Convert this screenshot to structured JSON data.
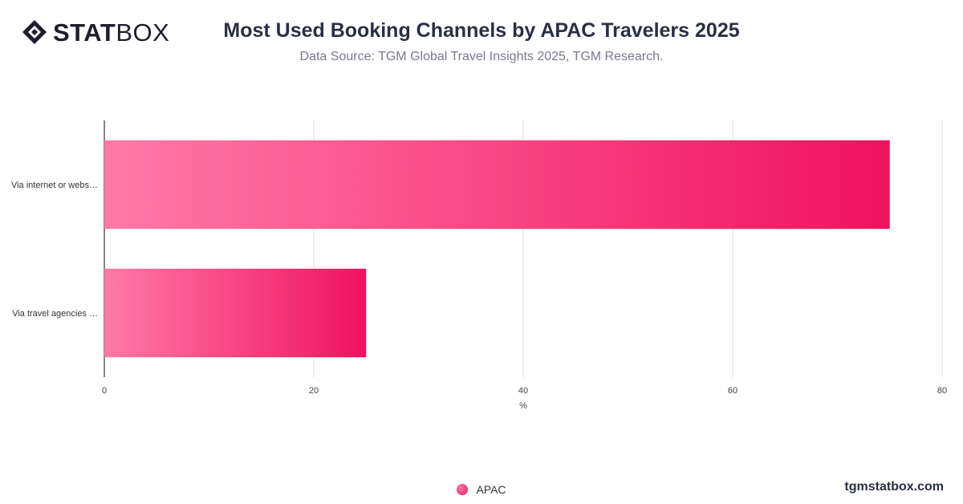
{
  "brand": {
    "logo_bold": "STAT",
    "logo_light": "BOX",
    "site": "tgmstatbox.com"
  },
  "header": {
    "title": "Most Used Booking Channels by APAC Travelers 2025",
    "subtitle": "Data Source: TGM Global Travel Insights 2025, TGM Research."
  },
  "chart_data": {
    "type": "bar",
    "orientation": "horizontal",
    "categories": [
      "Via internet or webs…",
      "Via travel agencies …"
    ],
    "series": [
      {
        "name": "APAC",
        "values": [
          75,
          25
        ]
      }
    ],
    "xlabel": "%",
    "xlim": [
      0,
      80
    ],
    "xticks": [
      0,
      20,
      40,
      60,
      80
    ],
    "grid": true,
    "legend": "bottom-center",
    "colors": {
      "bar_start": "#ff7aa8",
      "bar_end": "#f0125f",
      "grid": "#e2e2e2",
      "axis": "#333333"
    }
  }
}
